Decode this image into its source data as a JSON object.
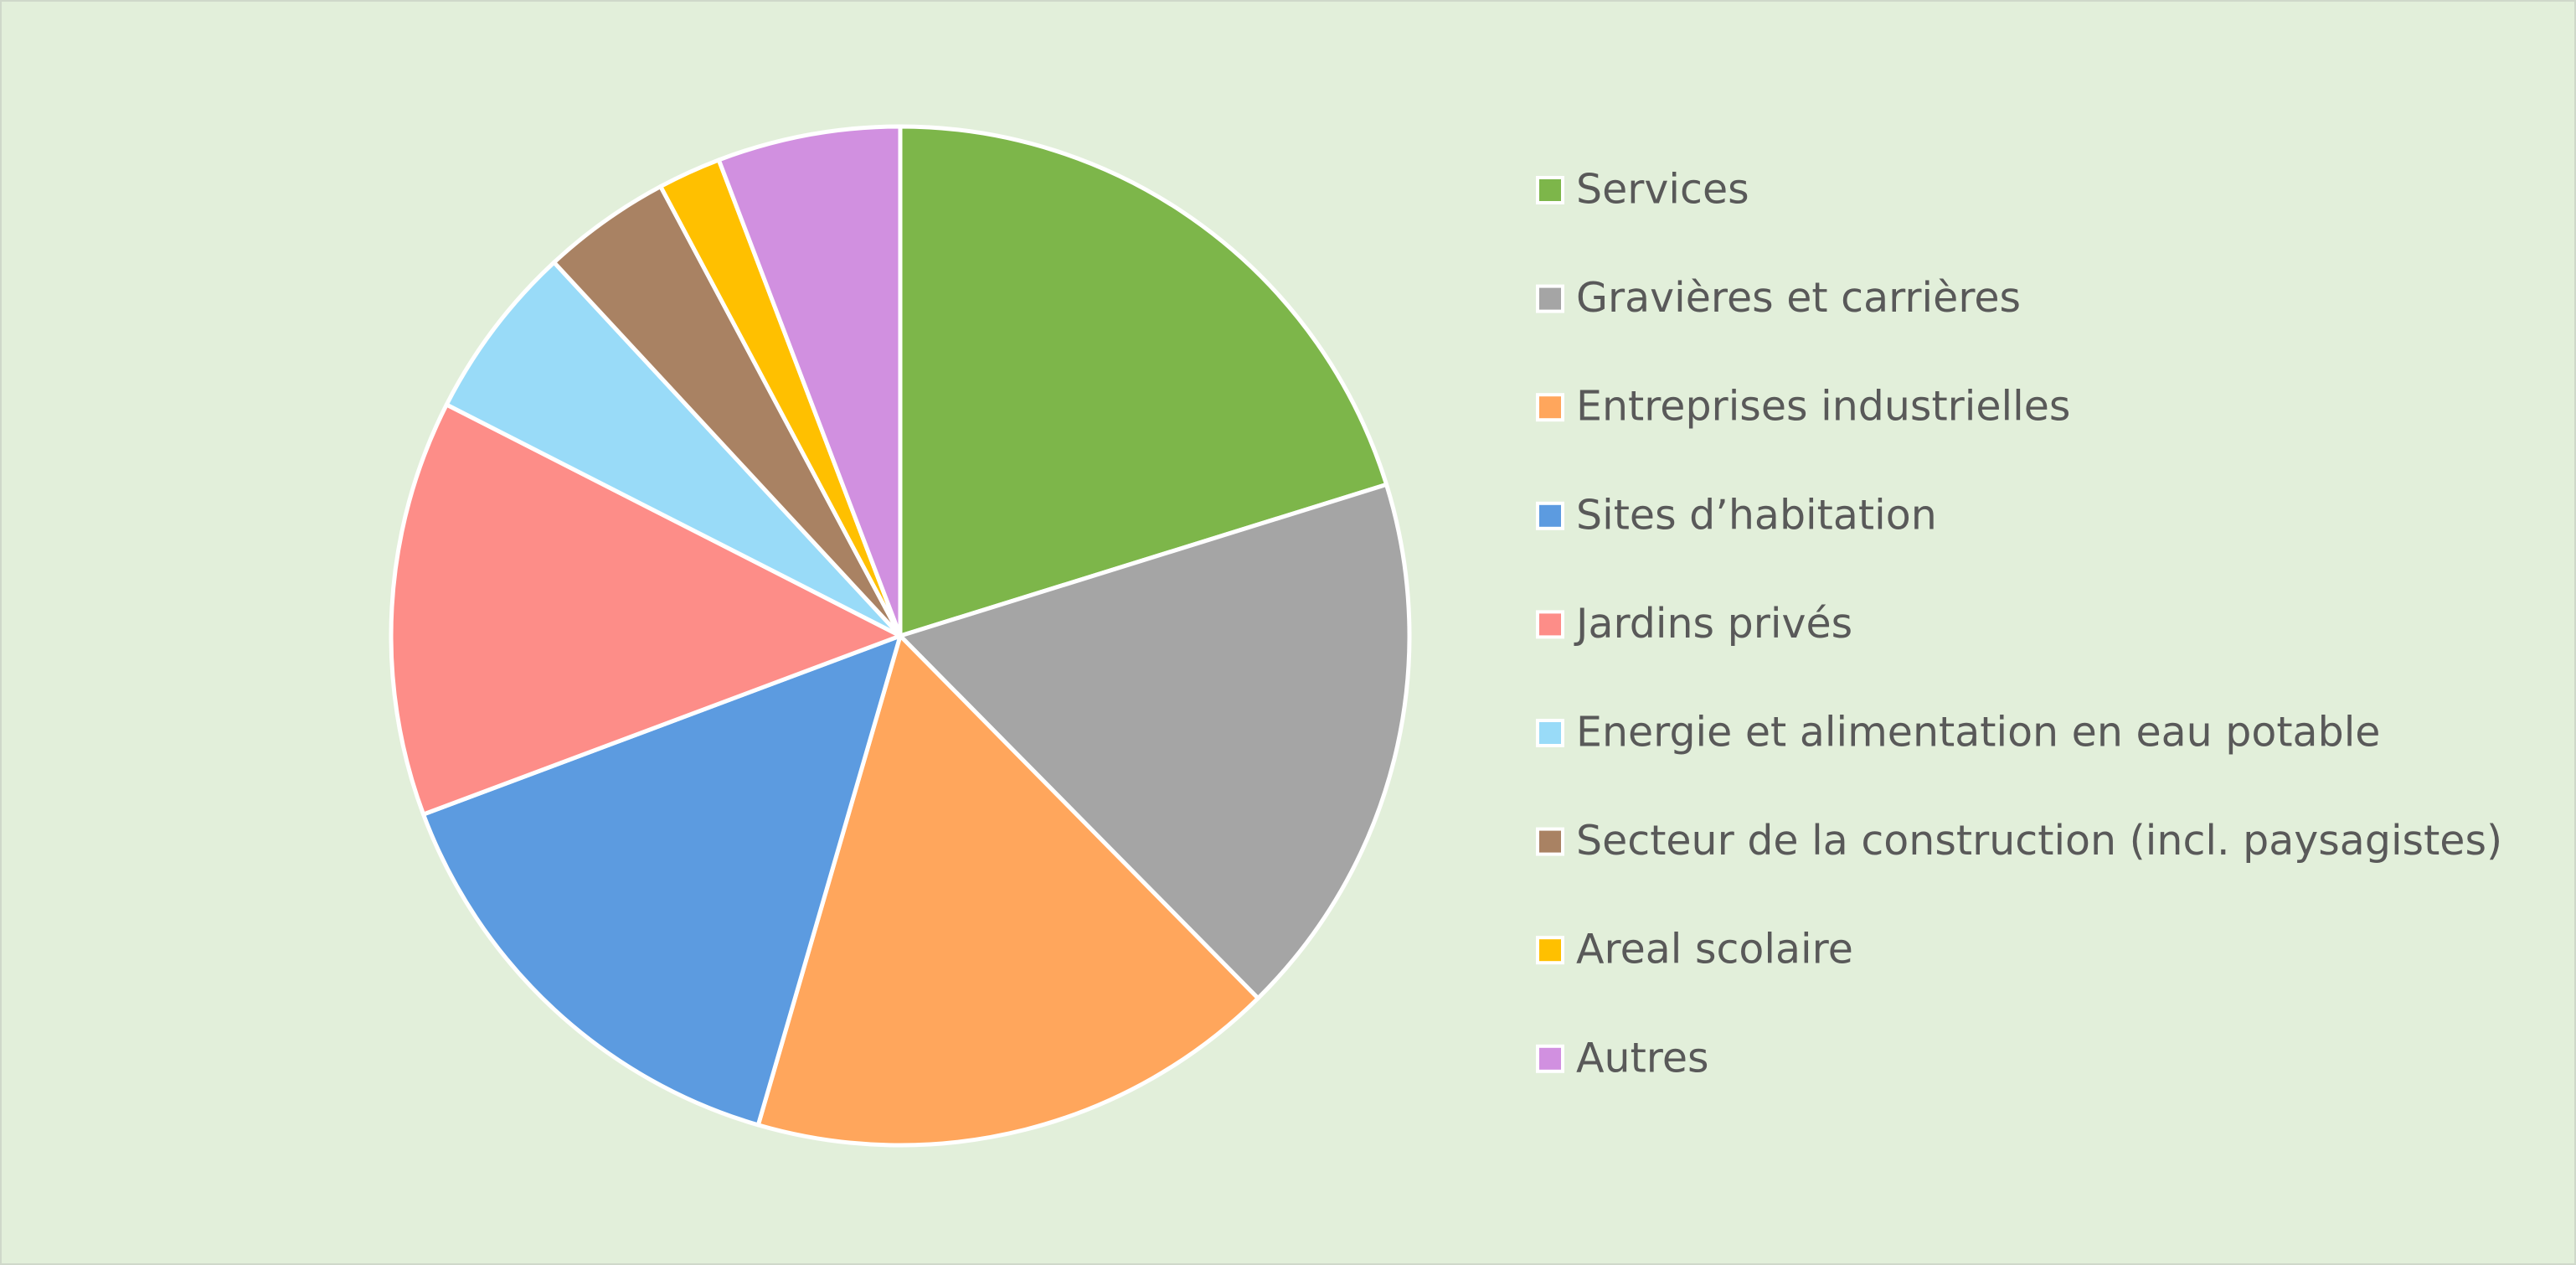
{
  "chart_data": {
    "type": "pie",
    "categories": [
      "Services",
      "Gravières et carrières",
      "Entreprises industrielles",
      "Sites d’habitation",
      "Jardins privés",
      "Energie et alimentation en eau potable",
      "Secteur de la construction (incl. paysagistes)",
      "Areal scolaire",
      "Autres"
    ],
    "values": [
      20.2,
      17.4,
      16.9,
      14.8,
      13.2,
      5.6,
      4.1,
      2.0,
      5.8
    ],
    "colors": [
      "#7db64a",
      "#a5a5a5",
      "#ffa65c",
      "#5c9be0",
      "#fd8d88",
      "#99dbf8",
      "#a98263",
      "#ffc000",
      "#d190e0"
    ],
    "legend": "right"
  }
}
